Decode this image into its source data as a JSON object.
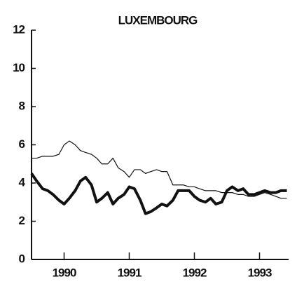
{
  "chart_data": {
    "type": "line",
    "title": "LUXEMBOURG",
    "x": [
      1990.0,
      1990.08,
      1990.17,
      1990.25,
      1990.33,
      1990.42,
      1990.5,
      1990.58,
      1990.67,
      1990.75,
      1990.83,
      1990.92,
      1991.0,
      1991.08,
      1991.17,
      1991.25,
      1991.33,
      1991.42,
      1991.5,
      1991.58,
      1991.67,
      1991.75,
      1991.83,
      1991.92,
      1992.0,
      1992.08,
      1992.17,
      1992.25,
      1992.33,
      1992.42,
      1992.5,
      1992.58,
      1992.67,
      1992.75,
      1992.83,
      1992.92,
      1993.0,
      1993.08,
      1993.17,
      1993.25,
      1993.33,
      1993.42,
      1993.5,
      1993.58,
      1993.67,
      1993.75,
      1993.83,
      1993.92
    ],
    "series": [
      {
        "color": "#111111",
        "width": 1.2,
        "values": [
          5.3,
          5.3,
          5.4,
          5.4,
          5.4,
          5.5,
          6.0,
          6.2,
          6.0,
          5.7,
          5.6,
          5.5,
          5.3,
          5.0,
          5.0,
          5.3,
          4.8,
          4.6,
          4.3,
          4.7,
          4.7,
          4.5,
          4.6,
          4.7,
          4.6,
          4.6,
          3.9,
          3.9,
          3.9,
          3.8,
          3.8,
          3.7,
          3.6,
          3.6,
          3.6,
          3.5,
          3.5,
          3.5,
          3.4,
          3.4,
          3.3,
          3.3,
          3.4,
          3.5,
          3.4,
          3.3,
          3.2,
          3.2
        ]
      },
      {
        "color": "#111111",
        "width": 4,
        "values": [
          4.5,
          4.1,
          3.7,
          3.6,
          3.4,
          3.1,
          2.9,
          3.2,
          3.6,
          4.1,
          4.3,
          3.9,
          3.0,
          3.2,
          3.5,
          2.9,
          3.2,
          3.4,
          3.8,
          3.7,
          3.1,
          2.4,
          2.5,
          2.7,
          2.9,
          2.8,
          3.1,
          3.6,
          3.6,
          3.6,
          3.3,
          3.1,
          3.0,
          3.2,
          2.9,
          3.0,
          3.6,
          3.8,
          3.6,
          3.7,
          3.4,
          3.4,
          3.5,
          3.6,
          3.5,
          3.5,
          3.6,
          3.6
        ]
      }
    ],
    "xlim": [
      1990,
      1994
    ],
    "xticks": [
      {
        "value": 1990.5,
        "label": "1990"
      },
      {
        "value": 1991.5,
        "label": "1991"
      },
      {
        "value": 1992.5,
        "label": "1992"
      },
      {
        "value": 1993.5,
        "label": "1993"
      }
    ],
    "ylim": [
      0,
      12
    ],
    "yticks": [
      0,
      2,
      4,
      6,
      8,
      10,
      12
    ]
  }
}
